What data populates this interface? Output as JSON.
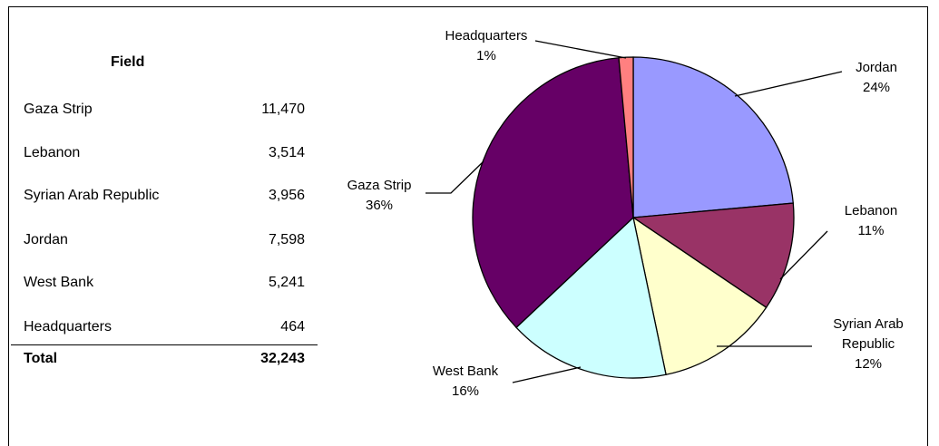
{
  "table": {
    "header": "Field",
    "rows": [
      {
        "field": "Gaza Strip",
        "value": "11,470"
      },
      {
        "field": "Lebanon",
        "value": "3,514"
      },
      {
        "field": "Syrian Arab Republic",
        "value": "3,956"
      },
      {
        "field": "Jordan",
        "value": "7,598"
      },
      {
        "field": "West Bank",
        "value": "5,241"
      },
      {
        "field": "Headquarters",
        "value": "464"
      }
    ],
    "total_label": "Total",
    "total_value": "32,243"
  },
  "chart_data": {
    "type": "pie",
    "slices": [
      {
        "name": "Jordan",
        "value": 7598,
        "percent": "24%",
        "color": "#9999ff"
      },
      {
        "name": "Lebanon",
        "value": 3514,
        "percent": "11%",
        "color": "#993366"
      },
      {
        "name": "Syrian Arab Republic",
        "value": 3956,
        "percent": "12%",
        "color": "#ffffcc"
      },
      {
        "name": "West Bank",
        "value": 5241,
        "percent": "16%",
        "color": "#ccffff"
      },
      {
        "name": "Gaza Strip",
        "value": 11470,
        "percent": "36%",
        "color": "#660066"
      },
      {
        "name": "Headquarters",
        "value": 464,
        "percent": "1%",
        "color": "#ff8080"
      }
    ],
    "start": "12 o'clock, clockwise"
  }
}
